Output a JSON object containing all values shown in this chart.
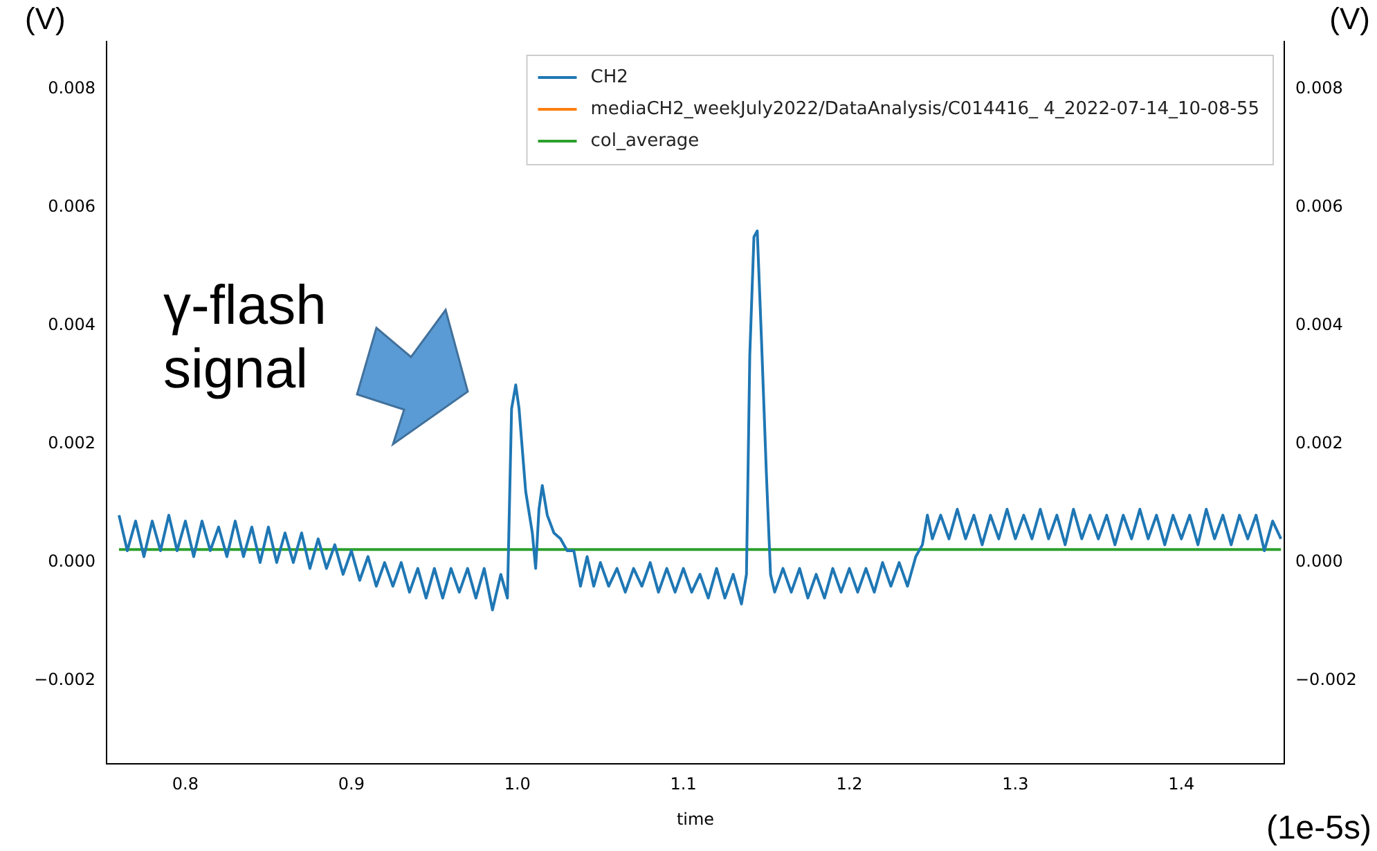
{
  "chart_data": {
    "type": "line",
    "xlabel": "time",
    "ylabel": "(V)",
    "y2label": "(V)",
    "annotations": [
      "γ-flash signal",
      "(1e-5s)"
    ],
    "xlim": [
      0.7525,
      1.462
    ],
    "xticks": [
      {
        "value": 0.8,
        "label": "0.8"
      },
      {
        "value": 0.9,
        "label": "0.9"
      },
      {
        "value": 1.0,
        "label": "1.0"
      },
      {
        "value": 1.1,
        "label": "1.1"
      },
      {
        "value": 1.2,
        "label": "1.2"
      },
      {
        "value": 1.3,
        "label": "1.3"
      },
      {
        "value": 1.4,
        "label": "1.4"
      }
    ],
    "ylim": [
      -0.0034,
      0.0088
    ],
    "yticks": [
      {
        "value": -0.002,
        "label": "−0.002"
      },
      {
        "value": 0,
        "label": "0.000"
      },
      {
        "value": 0.002,
        "label": "0.002"
      },
      {
        "value": 0.004,
        "label": "0.004"
      },
      {
        "value": 0.006,
        "label": "0.006"
      },
      {
        "value": 0.008,
        "label": "0.008"
      }
    ],
    "y2lim": [
      -0.0034,
      0.0088
    ],
    "y2ticks": [
      {
        "value": -0.002,
        "label": "−0.002"
      },
      {
        "value": 0,
        "label": "0.000"
      },
      {
        "value": 0.002,
        "label": "0.002"
      },
      {
        "value": 0.004,
        "label": "0.004"
      },
      {
        "value": 0.006,
        "label": "0.006"
      },
      {
        "value": 0.008,
        "label": "0.008"
      }
    ],
    "grid": false,
    "legend": "top right",
    "marker": "none",
    "line_style": "solid",
    "series": [
      {
        "name": "CH2",
        "color": "#1f77b4",
        "x": [
          0.76,
          0.765,
          0.77,
          0.775,
          0.78,
          0.785,
          0.79,
          0.795,
          0.8,
          0.805,
          0.81,
          0.815,
          0.82,
          0.825,
          0.83,
          0.835,
          0.84,
          0.845,
          0.85,
          0.855,
          0.86,
          0.865,
          0.87,
          0.875,
          0.88,
          0.885,
          0.89,
          0.895,
          0.9,
          0.905,
          0.91,
          0.915,
          0.92,
          0.925,
          0.93,
          0.935,
          0.94,
          0.945,
          0.95,
          0.955,
          0.96,
          0.965,
          0.97,
          0.975,
          0.98,
          0.985,
          0.99,
          0.994,
          0.9965,
          0.999,
          1.001,
          1.005,
          1.009,
          1.011,
          1.013,
          1.015,
          1.018,
          1.022,
          1.026,
          1.03,
          1.034,
          1.038,
          1.042,
          1.046,
          1.05,
          1.055,
          1.06,
          1.065,
          1.07,
          1.075,
          1.08,
          1.085,
          1.09,
          1.095,
          1.1,
          1.105,
          1.11,
          1.115,
          1.12,
          1.125,
          1.13,
          1.135,
          1.138,
          1.14,
          1.1425,
          1.1445,
          1.147,
          1.15,
          1.1525,
          1.155,
          1.16,
          1.165,
          1.17,
          1.175,
          1.18,
          1.185,
          1.19,
          1.195,
          1.2,
          1.205,
          1.21,
          1.215,
          1.22,
          1.225,
          1.23,
          1.235,
          1.24,
          1.244,
          1.247,
          1.25,
          1.255,
          1.26,
          1.265,
          1.27,
          1.275,
          1.28,
          1.285,
          1.29,
          1.295,
          1.3,
          1.305,
          1.31,
          1.315,
          1.32,
          1.325,
          1.33,
          1.335,
          1.34,
          1.345,
          1.35,
          1.355,
          1.36,
          1.365,
          1.37,
          1.375,
          1.38,
          1.385,
          1.39,
          1.395,
          1.4,
          1.405,
          1.41,
          1.415,
          1.42,
          1.425,
          1.43,
          1.435,
          1.44,
          1.445,
          1.45,
          1.455,
          1.46
        ],
        "values": [
          0.0008,
          0.0002,
          0.0007,
          0.0001,
          0.0007,
          0.0002,
          0.0008,
          0.0002,
          0.0007,
          0.0001,
          0.0007,
          0.0002,
          0.0006,
          0.0001,
          0.0007,
          0.0001,
          0.0006,
          0.0,
          0.0006,
          0.0,
          0.0005,
          0.0,
          0.0005,
          -0.0001,
          0.0004,
          -0.0001,
          0.0003,
          -0.0002,
          0.0002,
          -0.0003,
          0.0001,
          -0.0004,
          0.0,
          -0.0004,
          0.0,
          -0.0005,
          -0.0001,
          -0.0006,
          -0.0001,
          -0.0006,
          -0.0001,
          -0.0005,
          -0.0001,
          -0.0006,
          -0.0001,
          -0.0008,
          -0.0002,
          -0.0006,
          0.0026,
          0.003,
          0.0026,
          0.0012,
          0.0005,
          -0.0001,
          0.0009,
          0.0013,
          0.0008,
          0.0005,
          0.0004,
          0.0002,
          0.0002,
          -0.0004,
          0.0001,
          -0.0004,
          0.0,
          -0.0004,
          -0.0001,
          -0.0005,
          -0.0001,
          -0.0004,
          0.0,
          -0.0005,
          -0.0001,
          -0.0005,
          -0.0001,
          -0.0005,
          -0.0002,
          -0.0006,
          -0.0001,
          -0.0006,
          -0.0002,
          -0.0007,
          -0.0002,
          0.0035,
          0.0055,
          0.0056,
          0.0038,
          0.0015,
          -0.0002,
          -0.0005,
          -0.0001,
          -0.0005,
          -0.0001,
          -0.0006,
          -0.0002,
          -0.0006,
          -0.0001,
          -0.0005,
          -0.0001,
          -0.0005,
          -0.0001,
          -0.0005,
          0.0,
          -0.0004,
          0.0,
          -0.0004,
          0.0001,
          0.0003,
          0.0008,
          0.0004,
          0.0008,
          0.0004,
          0.0009,
          0.0004,
          0.0008,
          0.0003,
          0.0008,
          0.0004,
          0.0009,
          0.0004,
          0.0008,
          0.0004,
          0.0009,
          0.0004,
          0.0008,
          0.0003,
          0.0009,
          0.0004,
          0.0008,
          0.0004,
          0.0008,
          0.0003,
          0.0008,
          0.0004,
          0.0009,
          0.0004,
          0.0008,
          0.0003,
          0.0008,
          0.0004,
          0.0008,
          0.0003,
          0.0009,
          0.0004,
          0.0008,
          0.0003,
          0.0008,
          0.0004,
          0.0008,
          0.0002,
          0.0007,
          0.0004
        ]
      },
      {
        "name": "mediaCH2_weekJuly2022/DataAnalysis/C014416_ 4_2022-07-14_10-08-55",
        "color": "#ff7f0e"
      },
      {
        "name": "col_average",
        "color": "#2ca02c",
        "x": [
          0.76,
          1.46
        ],
        "values": [
          0.00022,
          0.00022
        ]
      }
    ]
  }
}
